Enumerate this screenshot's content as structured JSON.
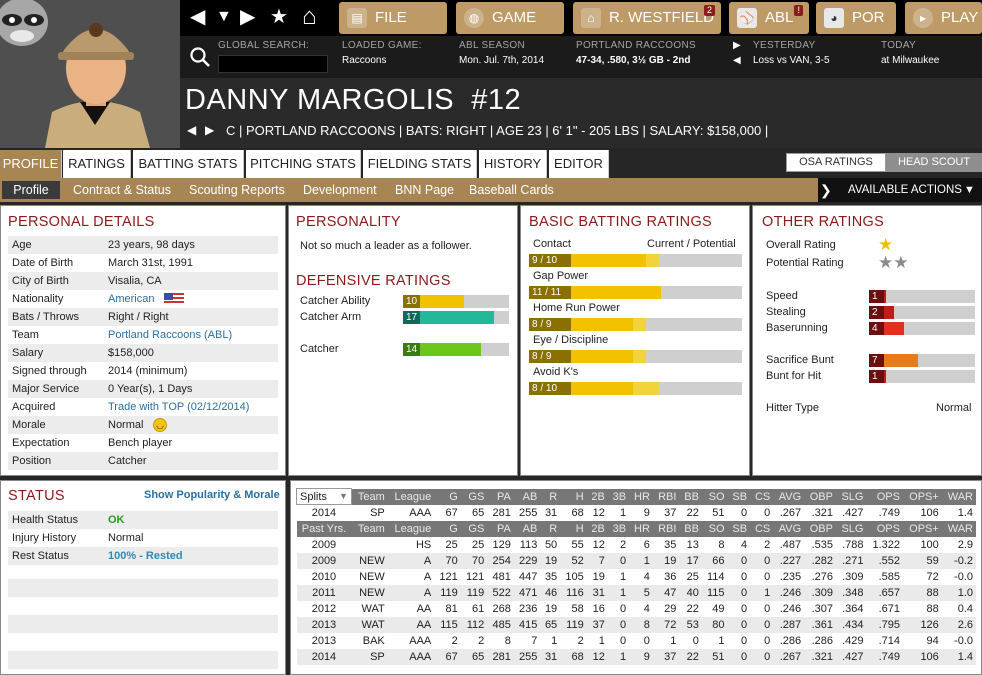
{
  "nav": {
    "back": "◀",
    "down": "▼",
    "forward": "▶",
    "star": "★",
    "home": "⌂"
  },
  "top_buttons": [
    {
      "label": "FILE",
      "icon": "file-icon"
    },
    {
      "label": "GAME",
      "icon": "globe-icon"
    },
    {
      "label": "R. WESTFIELD",
      "icon": "home-icon",
      "badge": "2"
    },
    {
      "label": "ABL",
      "icon": "league-logo-icon",
      "badge": "!"
    },
    {
      "label": "POR",
      "icon": "team-logo-icon"
    },
    {
      "label": "PLAY",
      "icon": "play-icon"
    }
  ],
  "info": {
    "search_label": "GLOBAL SEARCH:",
    "search_value": "",
    "loaded_game_label": "LOADED GAME:",
    "loaded_game": "Raccoons",
    "season_label": "ABL SEASON",
    "season_date": "Mon. Jul. 7th, 2014",
    "team_label": "PORTLAND RACCOONS",
    "team_record": "47-34, .580, 3½ GB - 2nd",
    "yesterday_label": "YESTERDAY",
    "yesterday": "Loss vs VAN, 3-5",
    "today_label": "TODAY",
    "today": "at Milwaukee"
  },
  "player": {
    "name": "DANNY MARGOLIS",
    "number": "#12",
    "line": "C | PORTLAND RACCOONS  |  BATS: RIGHT  |  AGE 23  |  6' 1\" - 205 LBS  |  SALARY: $158,000  |"
  },
  "tabs": [
    "PROFILE",
    "RATINGS",
    "BATTING STATS",
    "PITCHING STATS",
    "FIELDING STATS",
    "HISTORY",
    "EDITOR"
  ],
  "scout_tabs": [
    "OSA RATINGS",
    "HEAD SCOUT"
  ],
  "subtabs": [
    "Profile",
    "Contract & Status",
    "Scouting Reports",
    "Development",
    "BNN Page",
    "Baseball Cards"
  ],
  "available_actions": "AVAILABLE ACTIONS",
  "personal": {
    "title": "PERSONAL DETAILS",
    "rows": [
      {
        "k": "Age",
        "v": "23 years, 98 days"
      },
      {
        "k": "Date of Birth",
        "v": "March 31st, 1991"
      },
      {
        "k": "City of Birth",
        "v": "Visalia, CA"
      },
      {
        "k": "Nationality",
        "v": "American",
        "link": true,
        "flag": true
      },
      {
        "k": "Bats / Throws",
        "v": "Right / Right"
      },
      {
        "k": "Team",
        "v": "Portland Raccoons (ABL)",
        "link": true
      },
      {
        "k": "Salary",
        "v": "$158,000"
      },
      {
        "k": "Signed through",
        "v": "2014 (minimum)"
      },
      {
        "k": "Major Service",
        "v": "0 Year(s), 1 Days"
      },
      {
        "k": "Acquired",
        "v": "Trade with TOP (02/12/2014)",
        "link": true
      },
      {
        "k": "Morale",
        "v": "Normal",
        "smiley": true
      },
      {
        "k": "Expectation",
        "v": "Bench player"
      },
      {
        "k": "Position",
        "v": "Catcher"
      }
    ]
  },
  "personality": {
    "title": "PERSONALITY",
    "text": "Not so much a leader as a follower."
  },
  "defensive": {
    "title": "DEFENSIVE RATINGS",
    "items": [
      {
        "label": "Catcher Ability",
        "value": 10,
        "fill": 0.58,
        "color": "#f2c200",
        "numbg": "#8a7000"
      },
      {
        "label": "Catcher Arm",
        "value": 17,
        "fill": 0.86,
        "color": "#22b89a",
        "numbg": "#11695a"
      },
      {
        "label": "Catcher",
        "value": 14,
        "fill": 0.74,
        "color": "#6cc61c",
        "numbg": "#3a7a10"
      }
    ]
  },
  "batting": {
    "title": "BASIC BATTING RATINGS",
    "col_label": "Current / Potential",
    "items": [
      {
        "label": "Contact",
        "text": "9 / 10",
        "current": 0.55,
        "potential": 0.61
      },
      {
        "label": "Gap Power",
        "text": "11 / 11",
        "current": 0.62,
        "potential": 0.62
      },
      {
        "label": "Home Run Power",
        "text": "8 / 9",
        "current": 0.49,
        "potential": 0.55
      },
      {
        "label": "Eye / Discipline",
        "text": "8 / 9",
        "current": 0.49,
        "potential": 0.55
      },
      {
        "label": "Avoid K's",
        "text": "8 / 10",
        "current": 0.49,
        "potential": 0.61
      }
    ]
  },
  "other": {
    "title": "OTHER RATINGS",
    "overall_label": "Overall Rating",
    "overall_stars": 1,
    "potential_label": "Potential Rating",
    "potential_stars": 2,
    "items": [
      {
        "label": "Speed",
        "value": 1,
        "fill": 0.16,
        "color": "#c41a1a"
      },
      {
        "label": "Stealing",
        "value": 2,
        "fill": 0.24,
        "color": "#c41a1a"
      },
      {
        "label": "Baserunning",
        "value": 4,
        "fill": 0.33,
        "color": "#e0301e"
      },
      {
        "label": "Sacrifice Bunt",
        "value": 7,
        "fill": 0.46,
        "color": "#e87a1a"
      },
      {
        "label": "Bunt for Hit",
        "value": 1,
        "fill": 0.16,
        "color": "#c41a1a"
      }
    ],
    "hitter_type_label": "Hitter Type",
    "hitter_type": "Normal"
  },
  "status": {
    "title": "STATUS",
    "link": "Show Popularity & Morale",
    "rows": [
      {
        "k": "Health Status",
        "v": "OK",
        "color": "#2a9a2a"
      },
      {
        "k": "Injury History",
        "v": "Normal",
        "color": "#222"
      },
      {
        "k": "Rest Status",
        "v": "100% - Rested",
        "color": "#2d8ab0"
      }
    ]
  },
  "stats": {
    "split_select": "Splits",
    "headers": [
      "Team",
      "League",
      "G",
      "GS",
      "PA",
      "AB",
      "R",
      "H",
      "2B",
      "3B",
      "HR",
      "RBI",
      "BB",
      "SO",
      "SB",
      "CS",
      "AVG",
      "OBP",
      "SLG",
      "OPS",
      "OPS+",
      "WAR"
    ],
    "current": [
      "2014",
      "SP",
      "AAA",
      "67",
      "65",
      "281",
      "255",
      "31",
      "68",
      "12",
      "1",
      "9",
      "37",
      "22",
      "51",
      "0",
      "0",
      ".267",
      ".321",
      ".427",
      ".749",
      "106",
      "1.4"
    ],
    "past_label": "Past Yrs.",
    "rows": [
      [
        "2009",
        "",
        "HS",
        "25",
        "25",
        "129",
        "113",
        "50",
        "55",
        "12",
        "2",
        "6",
        "35",
        "13",
        "8",
        "4",
        "2",
        ".487",
        ".535",
        ".788",
        "1.322",
        "100",
        "2.9"
      ],
      [
        "2009",
        "NEW",
        "A",
        "70",
        "70",
        "254",
        "229",
        "19",
        "52",
        "7",
        "0",
        "1",
        "19",
        "17",
        "66",
        "0",
        "0",
        ".227",
        ".282",
        ".271",
        ".552",
        "59",
        "-0.2"
      ],
      [
        "2010",
        "NEW",
        "A",
        "121",
        "121",
        "481",
        "447",
        "35",
        "105",
        "19",
        "1",
        "4",
        "36",
        "25",
        "114",
        "0",
        "0",
        ".235",
        ".276",
        ".309",
        ".585",
        "72",
        "-0.0"
      ],
      [
        "2011",
        "NEW",
        "A",
        "119",
        "119",
        "522",
        "471",
        "46",
        "116",
        "31",
        "1",
        "5",
        "47",
        "40",
        "115",
        "0",
        "1",
        ".246",
        ".309",
        ".348",
        ".657",
        "88",
        "1.0"
      ],
      [
        "2012",
        "WAT",
        "AA",
        "81",
        "61",
        "268",
        "236",
        "19",
        "58",
        "16",
        "0",
        "4",
        "29",
        "22",
        "49",
        "0",
        "0",
        ".246",
        ".307",
        ".364",
        ".671",
        "88",
        "0.4"
      ],
      [
        "2013",
        "WAT",
        "AA",
        "115",
        "112",
        "485",
        "415",
        "65",
        "119",
        "37",
        "0",
        "8",
        "72",
        "53",
        "80",
        "0",
        "0",
        ".287",
        ".361",
        ".434",
        ".795",
        "126",
        "2.6"
      ],
      [
        "2013",
        "BAK",
        "AAA",
        "2",
        "2",
        "8",
        "7",
        "1",
        "2",
        "1",
        "0",
        "0",
        "1",
        "0",
        "1",
        "0",
        "0",
        ".286",
        ".286",
        ".429",
        ".714",
        "94",
        "-0.0"
      ],
      [
        "2014",
        "SP",
        "AAA",
        "67",
        "65",
        "281",
        "255",
        "31",
        "68",
        "12",
        "1",
        "9",
        "37",
        "22",
        "51",
        "0",
        "0",
        ".267",
        ".321",
        ".427",
        ".749",
        "106",
        "1.4"
      ]
    ]
  }
}
